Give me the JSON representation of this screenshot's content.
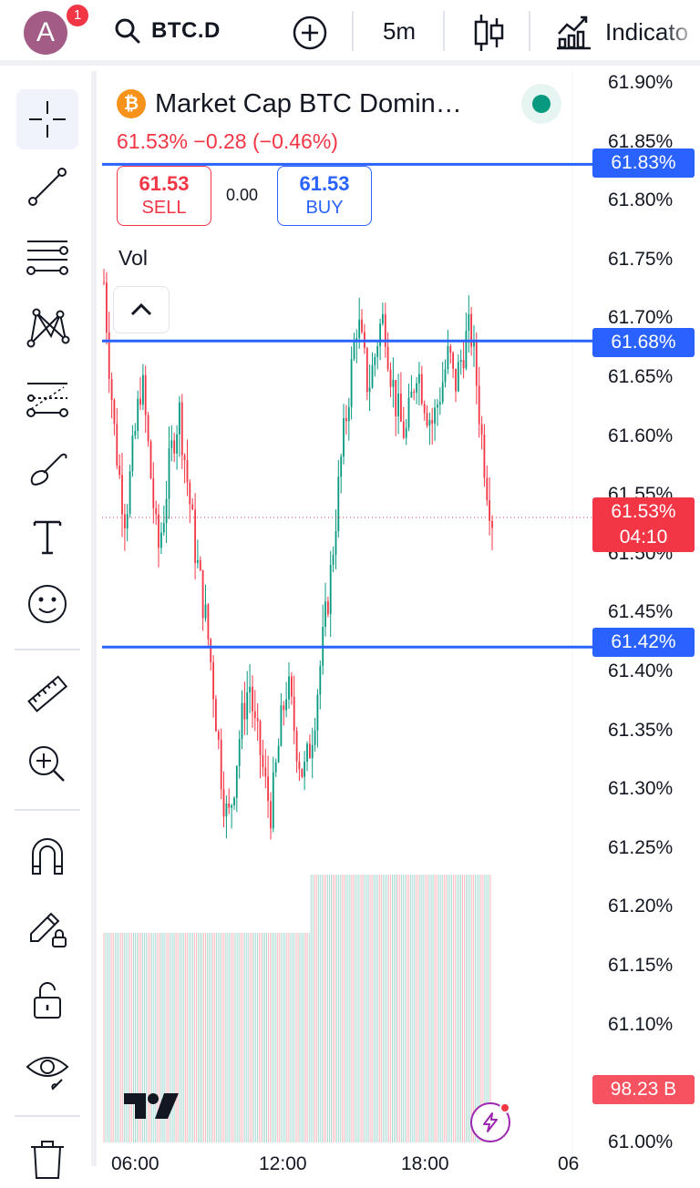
{
  "header": {
    "avatar_letter": "A",
    "notification_count": "1",
    "symbol": "BTC.D",
    "interval": "5m",
    "indicators_label": "Indicato",
    "icons": [
      "search-icon",
      "plus-circle-icon",
      "candles-icon",
      "indicators-icon"
    ]
  },
  "legend": {
    "title": "Market Cap BTC Domin…",
    "coin_symbol": "₿",
    "change": "61.53%  −0.28 (−0.46%)",
    "sell_price": "61.53",
    "sell_label": "SELL",
    "spread": "0.00",
    "buy_price": "61.53",
    "buy_label": "BUY",
    "vol_label": "Vol"
  },
  "toolbar": {
    "tools": [
      "crosshair-icon",
      "trend-line-icon",
      "fib-icon",
      "pattern-icon",
      "forecast-icon",
      "brush-icon",
      "text-icon",
      "emoji-icon",
      "ruler-icon",
      "zoom-in-icon",
      "magnet-icon",
      "lock-drawing-icon",
      "lock-icon",
      "eye-icon",
      "trash-icon"
    ]
  },
  "price_scale": {
    "ticks": [
      "61.90%",
      "61.85%",
      "61.80%",
      "61.75%",
      "61.70%",
      "61.65%",
      "61.60%",
      "61.55%",
      "61.50%",
      "61.45%",
      "61.40%",
      "61.35%",
      "61.30%",
      "61.25%",
      "61.20%",
      "61.15%",
      "61.10%",
      "61.00%"
    ],
    "horizontal_lines": [
      {
        "value": 61.83,
        "label": "61.83%"
      },
      {
        "value": 61.68,
        "label": "61.68%"
      },
      {
        "value": 61.42,
        "label": "61.42%"
      }
    ],
    "last_price": "61.53%",
    "countdown": "04:10",
    "volume_value": "98.23 B"
  },
  "time_scale": {
    "ticks": [
      "06:00",
      "12:00",
      "18:00",
      "06"
    ]
  },
  "colors": {
    "up": "#089981",
    "down": "#f23645",
    "line": "#2962ff",
    "volume_up": "rgba(8,153,129,0.35)",
    "volume_down": "rgba(242,54,69,0.35)"
  },
  "chart_data": {
    "type": "candlestick",
    "symbol": "BTC.D",
    "interval": "5m",
    "ylim": [
      61.0,
      61.9
    ],
    "close_path": [
      61.73,
      61.66,
      61.6,
      61.56,
      61.53,
      61.57,
      61.61,
      61.65,
      61.6,
      61.55,
      61.5,
      61.53,
      61.57,
      61.6,
      61.62,
      61.58,
      61.54,
      61.5,
      61.47,
      61.44,
      61.4,
      61.35,
      61.3,
      61.27,
      61.3,
      61.34,
      61.37,
      61.39,
      61.35,
      61.33,
      61.3,
      61.28,
      61.32,
      61.36,
      61.39,
      61.36,
      61.33,
      61.31,
      61.33,
      61.36,
      61.4,
      61.44,
      61.48,
      61.53,
      61.58,
      61.62,
      61.66,
      61.7,
      61.67,
      61.64,
      61.66,
      61.69,
      61.7,
      61.66,
      61.63,
      61.61,
      61.6,
      61.63,
      61.66,
      61.64,
      61.62,
      61.61,
      61.63,
      61.65,
      61.67,
      61.64,
      61.66,
      61.68,
      61.69,
      61.65,
      61.6,
      61.56,
      61.53
    ],
    "volume_levels": [
      0.72,
      0.92
    ]
  }
}
